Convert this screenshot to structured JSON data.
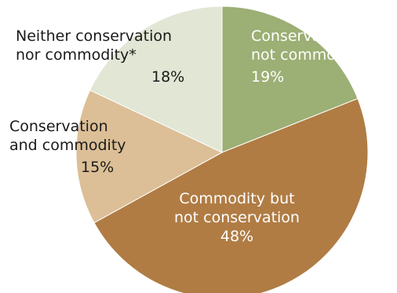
{
  "chart_data": {
    "type": "pie",
    "title": "",
    "start_angle_deg": 0,
    "direction": "clockwise",
    "slices": [
      {
        "label_lines": [
          "Conservation but",
          "not commodity"
        ],
        "value": 19,
        "value_label": "19%",
        "color": "#9caf74",
        "label_color": "#ffffff"
      },
      {
        "label_lines": [
          "Commodity but",
          "not conservation"
        ],
        "value": 48,
        "value_label": "48%",
        "color": "#b07c44",
        "label_color": "#ffffff"
      },
      {
        "label_lines": [
          "Conservation",
          "and commodity"
        ],
        "value": 15,
        "value_label": "15%",
        "color": "#dcbf97",
        "label_color": "#1a1a1a"
      },
      {
        "label_lines": [
          "Neither conservation",
          "nor commodity*"
        ],
        "value": 18,
        "value_label": "18%",
        "color": "#e2e6d5",
        "label_color": "#1a1a1a"
      }
    ]
  }
}
